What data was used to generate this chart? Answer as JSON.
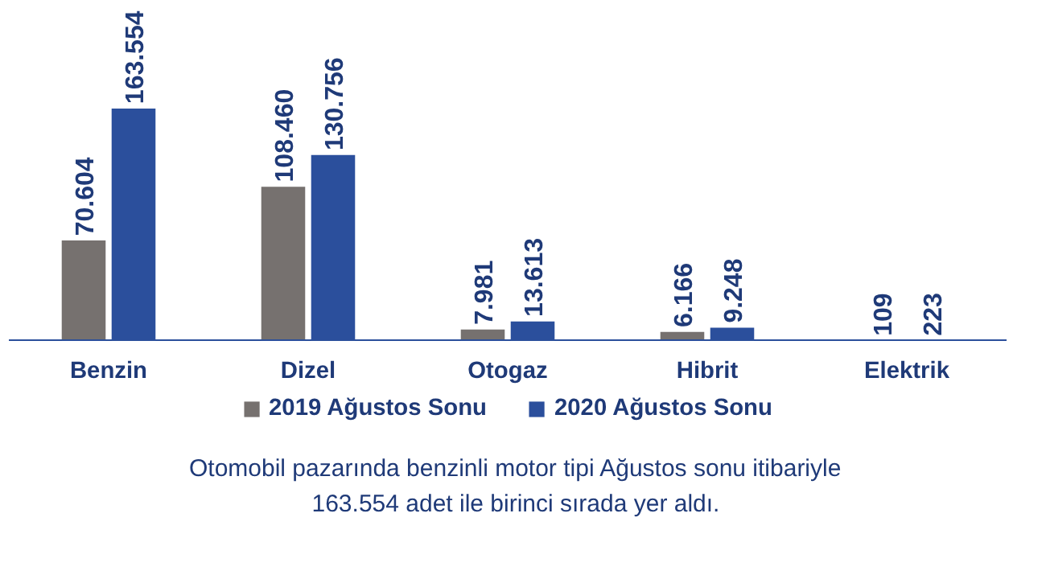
{
  "chart_data": {
    "type": "bar",
    "categories": [
      "Benzin",
      "Dizel",
      "Otogaz",
      "Hibrit",
      "Elektrik"
    ],
    "series": [
      {
        "name": "2019 Ağustos Sonu",
        "color": "#76716f",
        "values": [
          70604,
          108460,
          7981,
          6166,
          109
        ],
        "value_labels": [
          "70.604",
          "108.460",
          "7.981",
          "6.166",
          "109"
        ]
      },
      {
        "name": "2020 Ağustos Sonu",
        "color": "#2b4f9c",
        "values": [
          163554,
          130756,
          13613,
          9248,
          223
        ],
        "value_labels": [
          "163.554",
          "130.756",
          "13.613",
          "9.248",
          "223"
        ]
      }
    ],
    "legend": "bottom",
    "grid": false,
    "annotations": [
      "Otomobil pazarında benzinli motor tipi Ağustos sonu itibariyle 163.554 adet ile birinci sırada yer aldı."
    ]
  }
}
